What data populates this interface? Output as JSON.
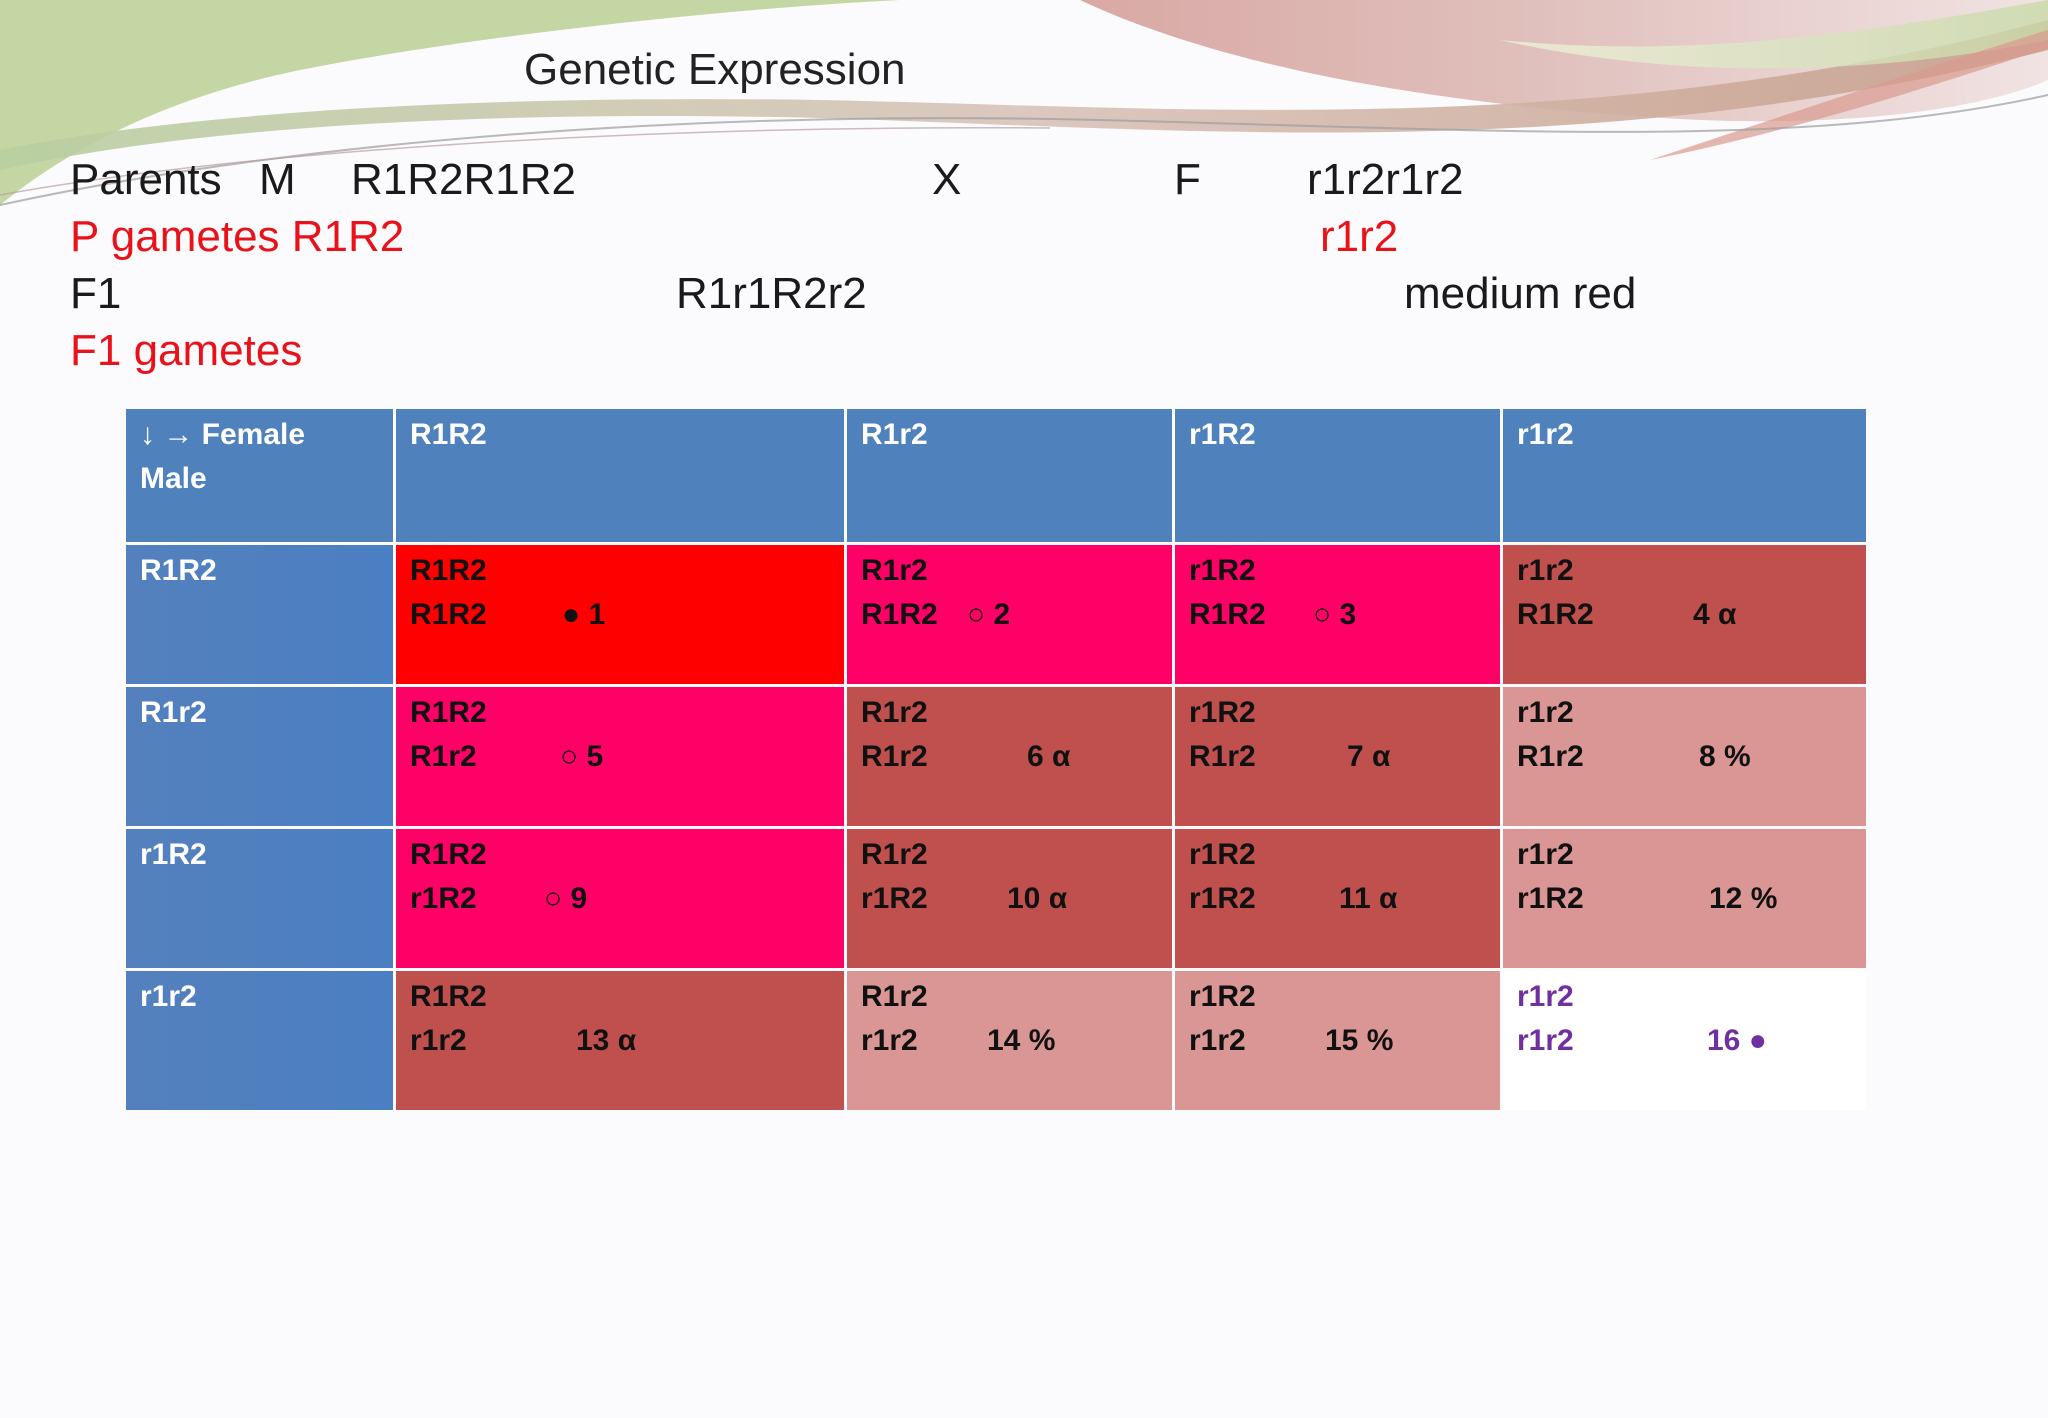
{
  "slide": {
    "title": "Genetic Expression",
    "parents": {
      "label": "Parents",
      "male_sym": "M",
      "male_genotype": "R1R2R1R2",
      "cross": "X",
      "female_sym": "F",
      "female_genotype": "r1r2r1r2"
    },
    "p_gametes": {
      "label": "P gametes R1R2",
      "female": "r1r2"
    },
    "f1": {
      "label": "F1",
      "genotype": "R1r1R2r2",
      "phenotype": "medium red"
    },
    "f1_gametes": {
      "label": "F1 gametes"
    }
  },
  "table": {
    "corner": {
      "line1": "↓   → Female",
      "line2": "Male"
    },
    "col_headers": [
      "R1R2",
      "R1r2",
      "r1R2",
      "r1r2"
    ],
    "row_headers": [
      "R1R2",
      "R1r2",
      "r1R2",
      "r1r2"
    ],
    "rows": [
      [
        {
          "top": "R1R2",
          "bottom": "R1R2",
          "mark": "●    1"
        },
        {
          "top": "R1r2",
          "bottom": "R1R2",
          "mark": "○  2"
        },
        {
          "top": "r1R2",
          "bottom": "R1R2",
          "mark": "○  3"
        },
        {
          "top": "r1r2",
          "bottom": "R1R2",
          "mark": "4     α"
        }
      ],
      [
        {
          "top": "R1R2",
          "bottom": "R1r2",
          "mark": "○    5"
        },
        {
          "top": "R1r2",
          "bottom": "R1r2",
          "mark": "6     α"
        },
        {
          "top": "r1R2",
          "bottom": "R1r2",
          "mark": "7     α"
        },
        {
          "top": "r1r2",
          "bottom": "R1r2",
          "mark": "8  %"
        }
      ],
      [
        {
          "top": "R1R2",
          "bottom": "r1R2",
          "mark": "○      9"
        },
        {
          "top": "R1r2",
          "bottom": "r1R2",
          "mark": "10     α"
        },
        {
          "top": "r1R2",
          "bottom": "r1R2",
          "mark": "11    α"
        },
        {
          "top": "r1r2",
          "bottom": "r1R2",
          "mark": "12    %"
        }
      ],
      [
        {
          "top": "R1R2",
          "bottom": "r1r2",
          "mark": "13      α"
        },
        {
          "top": "R1r2",
          "bottom": "r1r2",
          "mark": "14     %"
        },
        {
          "top": "r1R2",
          "bottom": "r1r2",
          "mark": "15   %"
        },
        {
          "top": "r1r2",
          "bottom": "r1r2",
          "mark": "16    ●"
        }
      ]
    ],
    "colors": {
      "header": "#4f81bd",
      "bright_red": "#ff0000",
      "pink": "#ff0066",
      "brick": "#c0504d",
      "rose": "#da9694",
      "white": "#ffffff",
      "purple_text": "#7030a0"
    }
  }
}
